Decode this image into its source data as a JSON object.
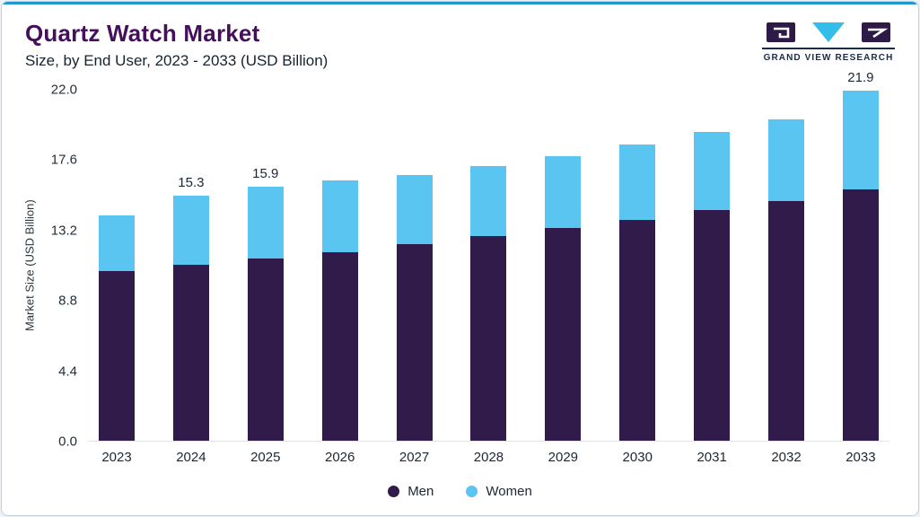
{
  "header": {
    "title": "Quartz Watch Market",
    "subtitle": "Size, by End User, 2023 - 2033 (USD Billion)",
    "logo_text": "GRAND VIEW RESEARCH"
  },
  "colors": {
    "accent_line": "#2199cf",
    "men": "#311b4b",
    "women": "#5bc5f2",
    "title": "#45105a"
  },
  "chart_data": {
    "type": "bar",
    "stacked": true,
    "title": "Quartz Watch Market Size, by End User, 2023 - 2033 (USD Billion)",
    "xlabel": "",
    "ylabel": "Market Size (USD Billion)",
    "ylim": [
      0,
      22.0
    ],
    "yticks": [
      0.0,
      4.4,
      8.8,
      13.2,
      17.6,
      22.0
    ],
    "grid": false,
    "legend_position": "bottom",
    "categories": [
      "2023",
      "2024",
      "2025",
      "2026",
      "2027",
      "2028",
      "2029",
      "2030",
      "2031",
      "2032",
      "2033"
    ],
    "series": [
      {
        "name": "Men",
        "color": "#311b4b",
        "values": [
          10.6,
          11.0,
          11.4,
          11.8,
          12.3,
          12.8,
          13.3,
          13.8,
          14.4,
          15.0,
          15.7
        ]
      },
      {
        "name": "Women",
        "color": "#5bc5f2",
        "values": [
          3.5,
          4.3,
          4.5,
          4.5,
          4.3,
          4.4,
          4.5,
          4.7,
          4.9,
          5.1,
          6.2
        ]
      }
    ],
    "totals": [
      14.1,
      15.3,
      15.9,
      16.3,
      16.6,
      17.2,
      17.8,
      18.5,
      19.3,
      20.1,
      21.9
    ],
    "total_labels": [
      "",
      "15.3",
      "15.9",
      "",
      "",
      "",
      "",
      "",
      "",
      "",
      "21.9"
    ]
  }
}
